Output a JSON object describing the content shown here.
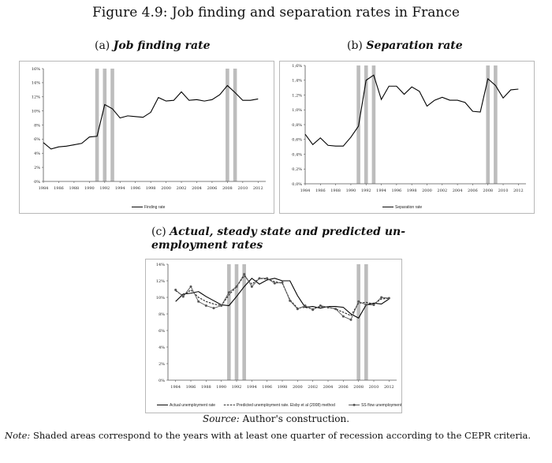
{
  "figure": {
    "title": "Figure 4.9: Job finding and separation rates in France",
    "source_label": "Source:",
    "source_text": "Author's construction.",
    "note_label": "Note:",
    "note_text": "Shaded areas correspond to the years with at least one quarter of recession according to the CEPR criteria."
  },
  "colors": {
    "line": "#000000",
    "recession": "#bdbdbd",
    "dashed": "#222222",
    "marker": "#555555"
  },
  "chart_data": [
    {
      "id": "a",
      "type": "line",
      "label": "(a)",
      "title": "Job finding rate",
      "xlabel": "",
      "ylabel": "",
      "ylim": [
        0,
        16
      ],
      "yticks": [
        "0%",
        "2%",
        "4%",
        "6%",
        "8%",
        "10%",
        "12%",
        "14%",
        "16%"
      ],
      "yticks_values": [
        0,
        2,
        4,
        6,
        8,
        10,
        12,
        14,
        16
      ],
      "xlim": [
        1984,
        2013
      ],
      "xticks": [
        1984,
        1986,
        1988,
        1990,
        1992,
        1994,
        1996,
        1998,
        2000,
        2002,
        2004,
        2006,
        2008,
        2010,
        2012
      ],
      "recessions": [
        1991,
        1992,
        1993,
        2008,
        2009
      ],
      "x": [
        1984,
        1985,
        1986,
        1987,
        1988,
        1989,
        1990,
        1991,
        1992,
        1993,
        1994,
        1995,
        1996,
        1997,
        1998,
        1999,
        2000,
        2001,
        2002,
        2003,
        2004,
        2005,
        2006,
        2007,
        2008,
        2009,
        2010,
        2011,
        2012
      ],
      "series": [
        {
          "name": "Finding rate",
          "style": "solid",
          "marker": false,
          "values": [
            5.5,
            4.6,
            4.9,
            5.0,
            5.2,
            5.4,
            6.3,
            6.4,
            10.9,
            10.3,
            9.0,
            9.3,
            9.2,
            9.1,
            9.8,
            11.9,
            11.4,
            11.5,
            12.7,
            11.5,
            11.6,
            11.4,
            11.6,
            12.3,
            13.6,
            12.6,
            11.5,
            11.5,
            11.7
          ]
        }
      ]
    },
    {
      "id": "b",
      "type": "line",
      "label": "(b)",
      "title": "Separation rate",
      "xlabel": "",
      "ylabel": "",
      "ylim": [
        0,
        1.6
      ],
      "yticks": [
        "0,0%",
        "0,2%",
        "0,4%",
        "0,6%",
        "0,8%",
        "1,0%",
        "1,2%",
        "1,4%",
        "1,6%"
      ],
      "yticks_values": [
        0,
        0.2,
        0.4,
        0.6,
        0.8,
        1.0,
        1.2,
        1.4,
        1.6
      ],
      "xlim": [
        1984,
        2013
      ],
      "xticks": [
        1984,
        1986,
        1988,
        1990,
        1992,
        1994,
        1996,
        1998,
        2000,
        2002,
        2004,
        2006,
        2008,
        2010,
        2012
      ],
      "recessions": [
        1991,
        1992,
        1993,
        2008,
        2009
      ],
      "x": [
        1984,
        1985,
        1986,
        1987,
        1988,
        1989,
        1990,
        1991,
        1992,
        1993,
        1994,
        1995,
        1996,
        1997,
        1998,
        1999,
        2000,
        2001,
        2002,
        2003,
        2004,
        2005,
        2006,
        2007,
        2008,
        2009,
        2010,
        2011,
        2012
      ],
      "series": [
        {
          "name": "Separation rate",
          "style": "solid",
          "marker": false,
          "values": [
            0.67,
            0.53,
            0.62,
            0.52,
            0.51,
            0.51,
            0.63,
            0.78,
            1.4,
            1.47,
            1.14,
            1.32,
            1.32,
            1.21,
            1.31,
            1.25,
            1.05,
            1.13,
            1.17,
            1.13,
            1.13,
            1.1,
            0.98,
            0.97,
            1.42,
            1.33,
            1.16,
            1.27,
            1.28
          ]
        }
      ]
    },
    {
      "id": "c",
      "type": "line",
      "label": "(c)",
      "title": "Actual, steady state and predicted unemployment rates",
      "title_line1": "Actual, steady state and predicted un-",
      "title_line2": "employment rates",
      "xlabel": "",
      "ylabel": "",
      "ylim": [
        0,
        14
      ],
      "yticks": [
        "0%",
        "2%",
        "4%",
        "6%",
        "8%",
        "10%",
        "12%",
        "14%"
      ],
      "yticks_values": [
        0,
        2,
        4,
        6,
        8,
        10,
        12,
        14
      ],
      "xlim": [
        1983,
        2013
      ],
      "xticks": [
        1984,
        1986,
        1988,
        1990,
        1992,
        1994,
        1996,
        1998,
        2000,
        2002,
        2004,
        2006,
        2008,
        2010,
        2012
      ],
      "recessions": [
        1991,
        1992,
        1993,
        2008,
        2009
      ],
      "x": [
        1984,
        1985,
        1986,
        1987,
        1988,
        1989,
        1990,
        1991,
        1992,
        1993,
        1994,
        1995,
        1996,
        1997,
        1998,
        1999,
        2000,
        2001,
        2002,
        2003,
        2004,
        2005,
        2006,
        2007,
        2008,
        2009,
        2010,
        2011,
        2012
      ],
      "series": [
        {
          "name": "Actual unemployment rate",
          "style": "solid",
          "marker": false,
          "values": [
            9.5,
            10.4,
            10.5,
            10.7,
            10.1,
            9.6,
            9.1,
            9.0,
            10.1,
            11.3,
            12.3,
            11.6,
            12.1,
            12.3,
            12.0,
            12.0,
            10.2,
            8.8,
            8.9,
            8.7,
            8.9,
            8.9,
            8.8,
            8.0,
            7.5,
            9.1,
            9.3,
            9.2,
            9.8
          ]
        },
        {
          "name": "Predicted unemployment rate. Elsby et al (2008) method",
          "style": "dashed",
          "marker": false,
          "values": [
            10.8,
            10.2,
            10.9,
            10.0,
            9.5,
            9.2,
            9.0,
            10.3,
            11.3,
            12.6,
            11.6,
            12.3,
            12.2,
            11.9,
            11.7,
            9.7,
            8.7,
            8.8,
            8.6,
            8.9,
            8.8,
            8.6,
            8.2,
            7.8,
            9.3,
            9.4,
            9.2,
            9.8,
            9.9
          ]
        },
        {
          "name": "SS flow unemployment",
          "style": "solid",
          "marker": true,
          "values": [
            10.9,
            10.1,
            11.3,
            9.5,
            9.0,
            8.7,
            9.0,
            10.6,
            11.3,
            12.8,
            11.3,
            12.3,
            12.3,
            11.7,
            11.8,
            9.6,
            8.6,
            9.0,
            8.5,
            9.0,
            8.8,
            8.6,
            7.7,
            7.3,
            9.5,
            9.1,
            9.1,
            10.0,
            9.9
          ]
        }
      ]
    }
  ]
}
